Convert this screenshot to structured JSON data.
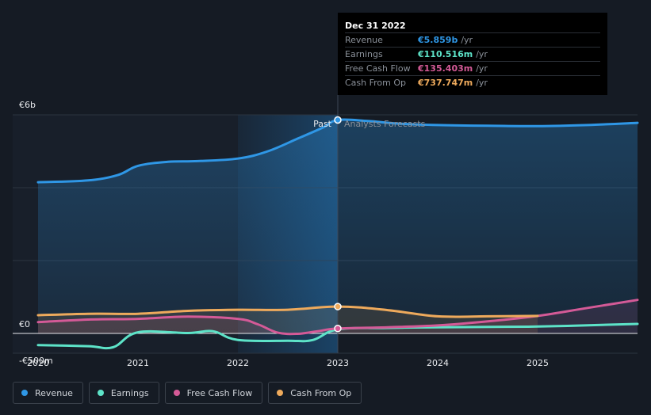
{
  "tooltip": {
    "date": "Dec 31 2022",
    "rows": [
      {
        "label": "Revenue",
        "value": "€5.859b",
        "unit": "/yr",
        "color": "#2f97e6"
      },
      {
        "label": "Earnings",
        "value": "€110.516m",
        "unit": "/yr",
        "color": "#5de3c8"
      },
      {
        "label": "Free Cash Flow",
        "value": "€135.403m",
        "unit": "/yr",
        "color": "#d45a97"
      },
      {
        "label": "Cash From Op",
        "value": "€737.747m",
        "unit": "/yr",
        "color": "#eeaa5c"
      }
    ]
  },
  "chart_data": {
    "type": "line",
    "y_unit": "€m",
    "ylim": [
      -500,
      6000
    ],
    "y_tick_labels": [
      {
        "value": 6000,
        "label": "€6b"
      },
      {
        "value": 0,
        "label": "€0"
      },
      {
        "value": -500,
        "label": "-€500m"
      }
    ],
    "xlim": [
      2020,
      2026
    ],
    "x_ticks": [
      {
        "value": 2020,
        "label": "2020"
      },
      {
        "value": 2021,
        "label": "2021"
      },
      {
        "value": 2022,
        "label": "2022"
      },
      {
        "value": 2023,
        "label": "2023"
      },
      {
        "value": 2024,
        "label": "2024"
      },
      {
        "value": 2025,
        "label": "2025"
      }
    ],
    "divider": {
      "x": 2023,
      "past_label": "Past",
      "forecast_label": "Analysts Forecasts"
    },
    "highlight_start": 2022,
    "series": [
      {
        "name": "Revenue",
        "color": "#2f97e6",
        "fill": true,
        "points": [
          [
            2020,
            4150
          ],
          [
            2020.5,
            4200
          ],
          [
            2020.8,
            4350
          ],
          [
            2021,
            4600
          ],
          [
            2021.3,
            4710
          ],
          [
            2021.6,
            4730
          ],
          [
            2022,
            4800
          ],
          [
            2022.3,
            5000
          ],
          [
            2022.6,
            5350
          ],
          [
            2022.85,
            5650
          ],
          [
            2023,
            5859
          ],
          [
            2023.3,
            5830
          ],
          [
            2023.6,
            5760
          ],
          [
            2024,
            5720
          ],
          [
            2024.5,
            5700
          ],
          [
            2025,
            5690
          ],
          [
            2025.5,
            5720
          ],
          [
            2026,
            5780
          ]
        ]
      },
      {
        "name": "Earnings",
        "color": "#5de3c8",
        "fill": false,
        "points": [
          [
            2020,
            -320
          ],
          [
            2020.5,
            -350
          ],
          [
            2020.75,
            -380
          ],
          [
            2021,
            30
          ],
          [
            2021.5,
            10
          ],
          [
            2021.75,
            60
          ],
          [
            2022,
            -180
          ],
          [
            2022.5,
            -200
          ],
          [
            2022.75,
            -180
          ],
          [
            2023,
            110.5
          ],
          [
            2023.5,
            150
          ],
          [
            2024,
            170
          ],
          [
            2025,
            190
          ],
          [
            2026,
            260
          ]
        ]
      },
      {
        "name": "Free Cash Flow",
        "color": "#d45a97",
        "fill": true,
        "points": [
          [
            2020,
            310
          ],
          [
            2020.5,
            380
          ],
          [
            2021,
            400
          ],
          [
            2021.5,
            460
          ],
          [
            2022,
            400
          ],
          [
            2022.2,
            250
          ],
          [
            2022.4,
            20
          ],
          [
            2022.6,
            -10
          ],
          [
            2022.8,
            60
          ],
          [
            2023,
            135.4
          ],
          [
            2023.5,
            170
          ],
          [
            2024,
            220
          ],
          [
            2024.5,
            330
          ],
          [
            2025,
            480
          ],
          [
            2025.5,
            700
          ],
          [
            2026,
            920
          ]
        ]
      },
      {
        "name": "Cash From Op",
        "color": "#eeaa5c",
        "fill": true,
        "points": [
          [
            2020,
            500
          ],
          [
            2020.5,
            540
          ],
          [
            2021,
            540
          ],
          [
            2021.5,
            620
          ],
          [
            2022,
            650
          ],
          [
            2022.5,
            650
          ],
          [
            2023,
            737.7
          ],
          [
            2023.5,
            640
          ],
          [
            2024,
            470
          ],
          [
            2024.5,
            470
          ],
          [
            2025,
            480
          ]
        ]
      }
    ],
    "markers": [
      {
        "series": "Revenue",
        "x": 2023,
        "y": 5859
      },
      {
        "series": "Cash From Op",
        "x": 2023,
        "y": 737.7
      },
      {
        "series": "Free Cash Flow",
        "x": 2023,
        "y": 135.4
      }
    ],
    "legend": [
      {
        "name": "Revenue",
        "color": "#2f97e6"
      },
      {
        "name": "Earnings",
        "color": "#5de3c8"
      },
      {
        "name": "Free Cash Flow",
        "color": "#d45a97"
      },
      {
        "name": "Cash From Op",
        "color": "#eeaa5c"
      }
    ]
  }
}
